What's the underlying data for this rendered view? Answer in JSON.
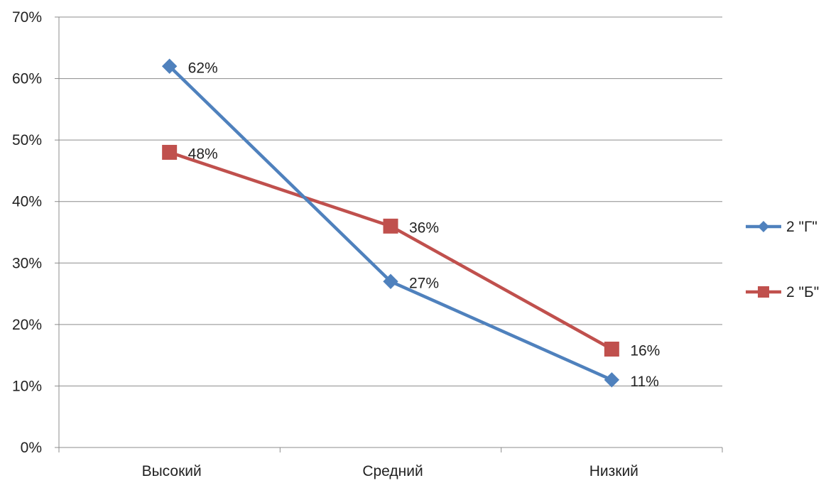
{
  "chart_data": {
    "type": "line",
    "title": "",
    "xlabel": "",
    "ylabel": "",
    "categories": [
      "Высокий",
      "Средний",
      "Низкий"
    ],
    "ylim": [
      0,
      70
    ],
    "yticks": [
      0,
      10,
      20,
      30,
      40,
      50,
      60,
      70
    ],
    "y_tick_format": "percent",
    "grid": true,
    "legend": "right",
    "series": [
      {
        "name": "2 \"Г\"",
        "values": [
          62,
          27,
          11
        ],
        "labels": [
          "62%",
          "27%",
          "11%"
        ],
        "color": "#4F81BD",
        "marker": "diamond"
      },
      {
        "name": "2 \"Б\"",
        "values": [
          48,
          36,
          16
        ],
        "labels": [
          "48%",
          "36%",
          "16%"
        ],
        "color": "#C0504D",
        "marker": "square"
      }
    ]
  }
}
